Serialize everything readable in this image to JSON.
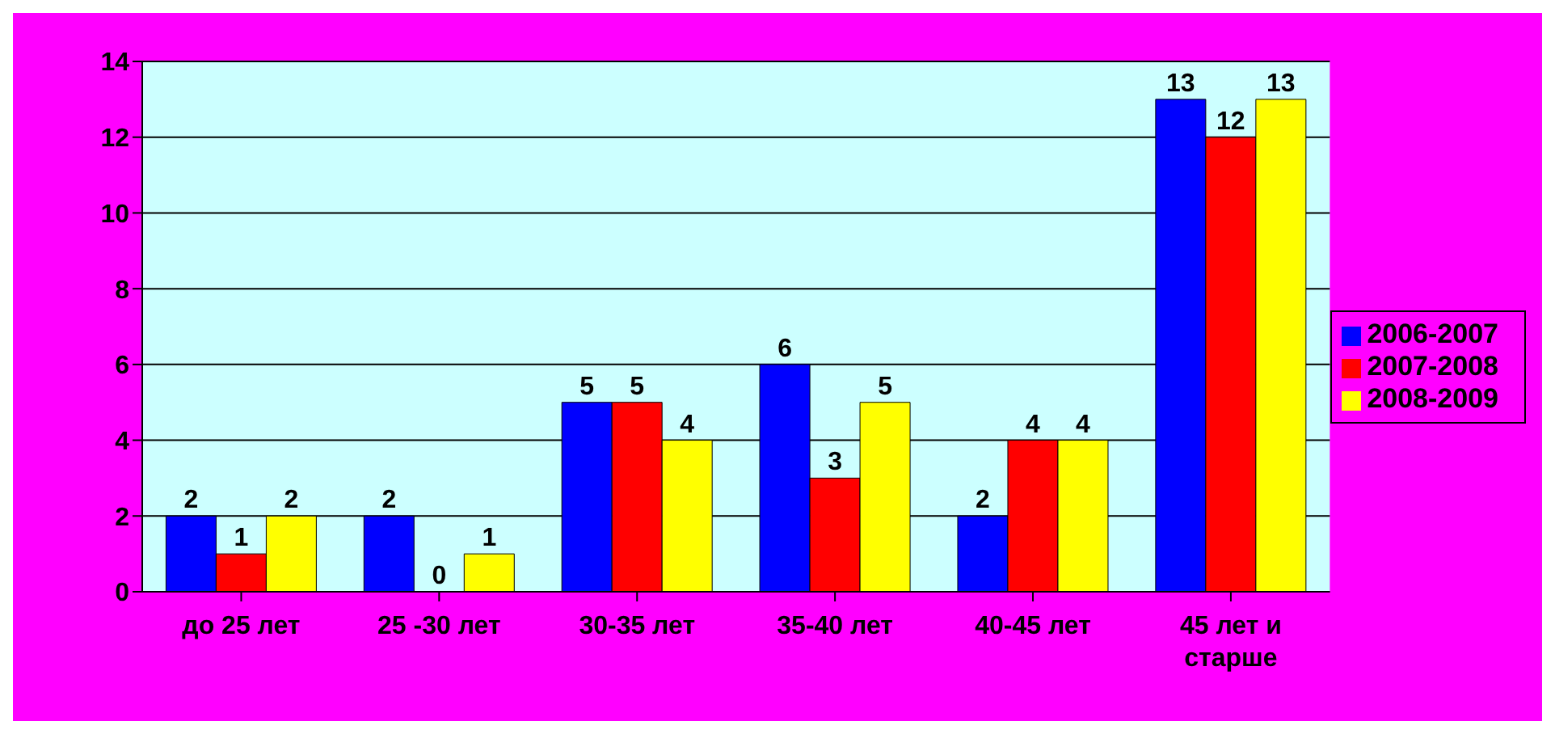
{
  "chart_data": {
    "type": "bar",
    "categories": [
      "до 25 лет",
      "25 -30 лет",
      "30-35 лет",
      "35-40 лет",
      "40-45 лет",
      "45 лет и старше"
    ],
    "series": [
      {
        "name": "2006-2007",
        "color": "#0000ff",
        "values": [
          2,
          2,
          5,
          6,
          2,
          13
        ]
      },
      {
        "name": "2007-2008",
        "color": "#ff0000",
        "values": [
          1,
          0,
          5,
          3,
          4,
          12
        ]
      },
      {
        "name": "2008-2009",
        "color": "#ffff00",
        "values": [
          2,
          1,
          4,
          5,
          4,
          13
        ]
      }
    ],
    "ylim": [
      0,
      14
    ],
    "yticks": [
      0,
      2,
      4,
      6,
      8,
      10,
      12,
      14
    ],
    "grid": "y",
    "legend": "right",
    "data_labels": true
  }
}
